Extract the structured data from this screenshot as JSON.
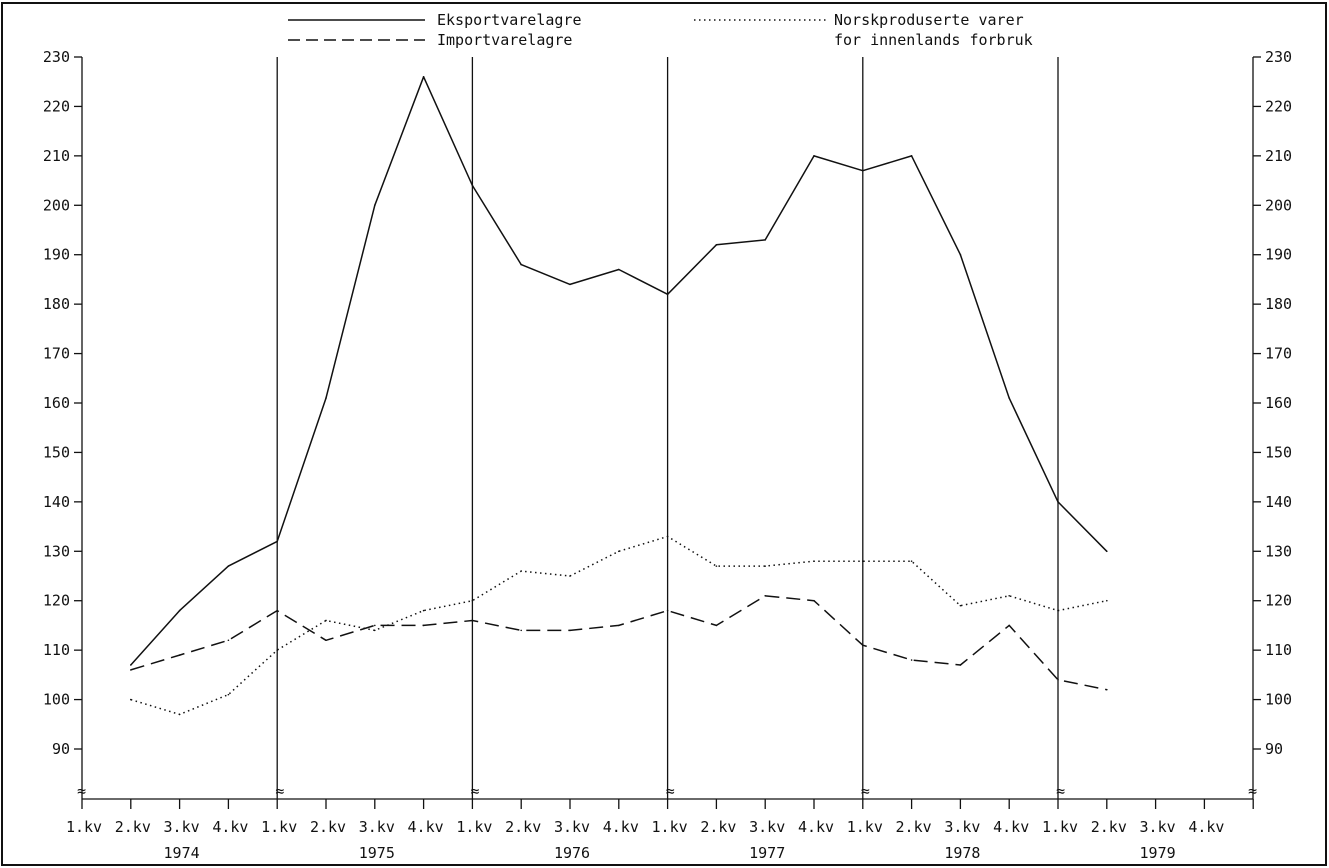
{
  "chart_data": {
    "type": "line",
    "title": "",
    "xlabel": "",
    "ylabel": "",
    "ylim": [
      90,
      230
    ],
    "y_ticks": [
      90,
      100,
      110,
      120,
      130,
      140,
      150,
      160,
      170,
      180,
      190,
      200,
      210,
      220,
      230
    ],
    "dual_y_axis": true,
    "axis_break_marker": "≈",
    "grid": "vertical lines at year boundaries",
    "legend_position": "top",
    "years": [
      "1974",
      "1975",
      "1976",
      "1977",
      "1978",
      "1979"
    ],
    "quarter_labels": [
      "1.kv",
      "2.kv",
      "3.kv",
      "4.kv"
    ],
    "x": [
      "1974 2.kv",
      "1974 3.kv",
      "1974 4.kv",
      "1975 1.kv",
      "1975 2.kv",
      "1975 3.kv",
      "1975 4.kv",
      "1976 1.kv",
      "1976 2.kv",
      "1976 3.kv",
      "1976 4.kv",
      "1977 1.kv",
      "1977 2.kv",
      "1977 3.kv",
      "1977 4.kv",
      "1978 1.kv",
      "1978 2.kv",
      "1978 3.kv",
      "1978 4.kv",
      "1979 1.kv",
      "1979 2.kv"
    ],
    "series": [
      {
        "name": "Eksportvarelagre",
        "style": "solid",
        "values": [
          107,
          118,
          127,
          132,
          161,
          200,
          226,
          204,
          188,
          184,
          187,
          182,
          192,
          193,
          210,
          207,
          210,
          190,
          161,
          140,
          130
        ]
      },
      {
        "name": "Importvarelagre",
        "style": "dashed",
        "values": [
          106,
          109,
          112,
          118,
          112,
          115,
          115,
          116,
          114,
          114,
          115,
          118,
          115,
          121,
          120,
          111,
          108,
          107,
          115,
          104,
          102
        ]
      },
      {
        "name": "Norskproduserte varer",
        "name_line2": "for innenlands forbruk",
        "style": "dotted",
        "values": [
          100,
          97,
          101,
          110,
          116,
          114,
          118,
          120,
          126,
          125,
          130,
          133,
          127,
          127,
          128,
          128,
          128,
          119,
          121,
          118,
          120
        ]
      }
    ]
  }
}
